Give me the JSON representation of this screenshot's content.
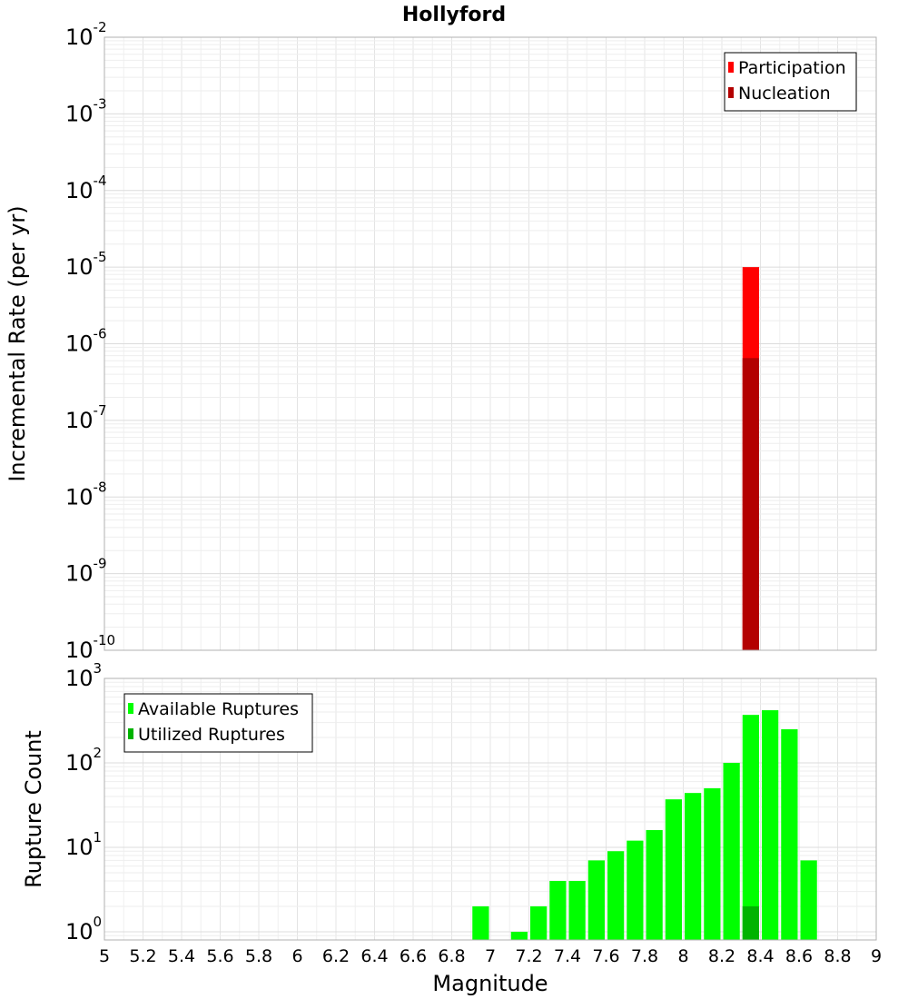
{
  "chart_data": [
    {
      "type": "bar",
      "title": "Hollyford",
      "xlabel": "",
      "ylabel": "Incremental Rate (per yr)",
      "xlim": [
        5,
        9
      ],
      "ylim": [
        1e-10,
        0.01
      ],
      "y_scale": "log",
      "y_ticks": [
        "10",
        "10",
        "10",
        "10",
        "10",
        "10",
        "10",
        "10",
        "10"
      ],
      "y_exponents": [
        "-10",
        "-9",
        "-8",
        "-7",
        "-6",
        "-5",
        "-4",
        "-3",
        "-2"
      ],
      "grid": true,
      "legend_placement": "top-right",
      "bar_width": 0.1,
      "series": [
        {
          "name": "Participation",
          "color": "#ff0000",
          "x": [
            8.35
          ],
          "values": [
            1e-05
          ]
        },
        {
          "name": "Nucleation",
          "color": "#b30000",
          "x": [
            8.35
          ],
          "values": [
            6.5e-07
          ]
        }
      ]
    },
    {
      "type": "bar",
      "title": "",
      "xlabel": "Magnitude",
      "ylabel": "Rupture Count",
      "xlim": [
        5,
        9
      ],
      "ylim": [
        0.8,
        1000
      ],
      "y_scale": "log",
      "y_ticks": [
        "10",
        "10",
        "10",
        "10"
      ],
      "y_exponents": [
        "0",
        "1",
        "2",
        "3"
      ],
      "x_ticks": [
        "5",
        "5.2",
        "5.4",
        "5.6",
        "5.8",
        "6",
        "6.2",
        "6.4",
        "6.6",
        "6.8",
        "7",
        "7.2",
        "7.4",
        "7.6",
        "7.8",
        "8",
        "8.2",
        "8.4",
        "8.6",
        "8.8",
        "9"
      ],
      "grid": true,
      "legend_placement": "top-left",
      "bar_width": 0.1,
      "series": [
        {
          "name": "Available Ruptures",
          "color": "#00ff00",
          "x": [
            6.95,
            7.15,
            7.25,
            7.35,
            7.45,
            7.55,
            7.65,
            7.75,
            7.85,
            7.95,
            8.05,
            8.15,
            8.25,
            8.35,
            8.45,
            8.55,
            8.65
          ],
          "values": [
            2,
            1,
            2,
            4,
            4,
            7,
            9,
            12,
            16,
            37,
            44,
            50,
            100,
            370,
            420,
            250,
            7
          ]
        },
        {
          "name": "Utilized Ruptures",
          "color": "#00b300",
          "x": [
            8.35
          ],
          "values": [
            2
          ]
        }
      ]
    }
  ]
}
